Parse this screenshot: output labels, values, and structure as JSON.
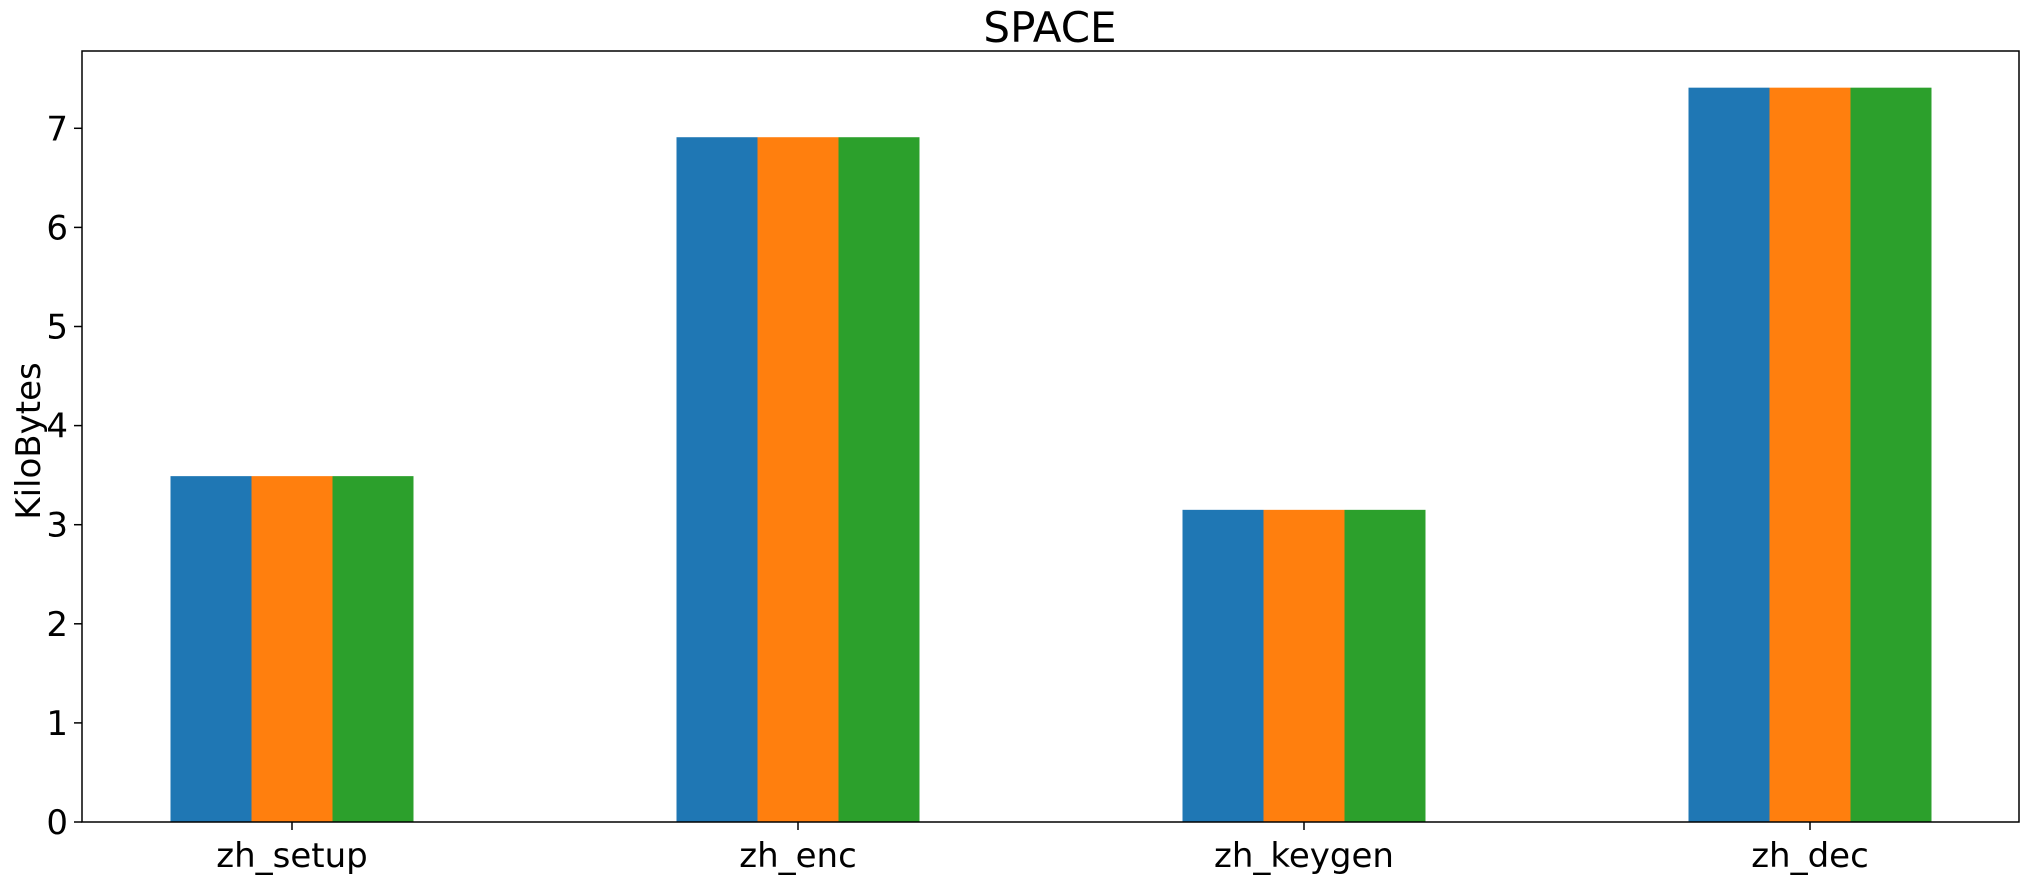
{
  "chart_data": {
    "type": "bar",
    "title": "SPACE",
    "xlabel": "",
    "ylabel": "KiloBytes",
    "categories": [
      "zh_setup",
      "zh_enc",
      "zh_keygen",
      "zh_dec"
    ],
    "series": [
      {
        "values": [
          3.49,
          6.91,
          3.15,
          7.41
        ],
        "color": "#1f77b4"
      },
      {
        "values": [
          3.49,
          6.91,
          3.15,
          7.41
        ],
        "color": "#ff7f0e"
      },
      {
        "values": [
          3.49,
          6.91,
          3.15,
          7.41
        ],
        "color": "#2ca02c"
      }
    ],
    "ylim": [
      0,
      7.78
    ],
    "yticks": [
      "0",
      "1",
      "2",
      "3",
      "4",
      "5",
      "6",
      "7"
    ],
    "grid": false,
    "legend": "none"
  }
}
